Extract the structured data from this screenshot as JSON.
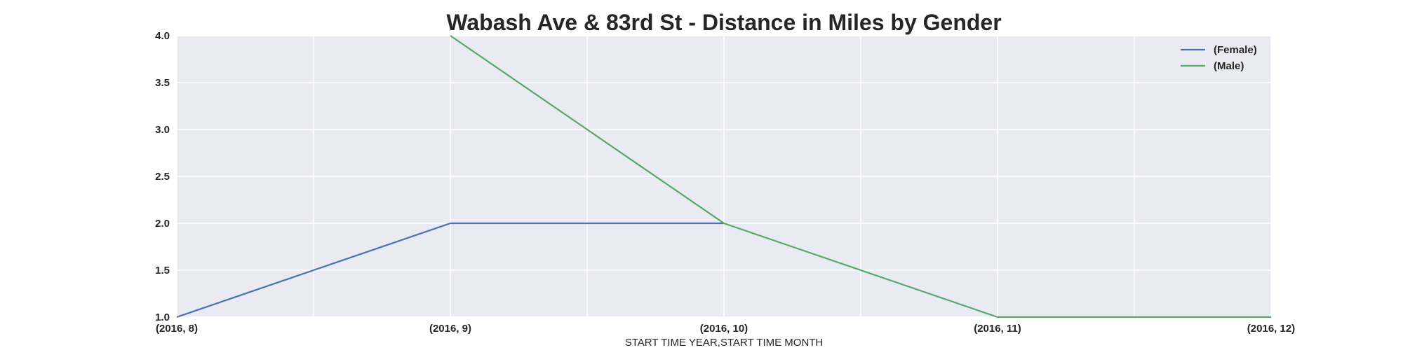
{
  "chart_data": {
    "type": "line",
    "title": "Wabash Ave & 83rd St - Distance in Miles by Gender",
    "xlabel": "START TIME YEAR,START TIME MONTH",
    "ylabel": "",
    "x": [
      "(2016, 8)",
      "(2016, 9)",
      "(2016, 10)",
      "(2016, 11)",
      "(2016, 12)"
    ],
    "ylim": [
      1.0,
      4.0
    ],
    "yticks": [
      "1.0",
      "1.5",
      "2.0",
      "2.5",
      "3.0",
      "3.5",
      "4.0"
    ],
    "grid": true,
    "legend_position": "top-right",
    "series": [
      {
        "name": "(Female)",
        "color": "#4c72b0",
        "values": [
          1.0,
          2.0,
          2.0,
          null,
          null
        ]
      },
      {
        "name": "(Male)",
        "color": "#55a868",
        "values": [
          null,
          4.0,
          2.0,
          1.0,
          1.0
        ]
      }
    ],
    "background_color": "#eaeaf2",
    "grid_color": "#ffffff"
  }
}
